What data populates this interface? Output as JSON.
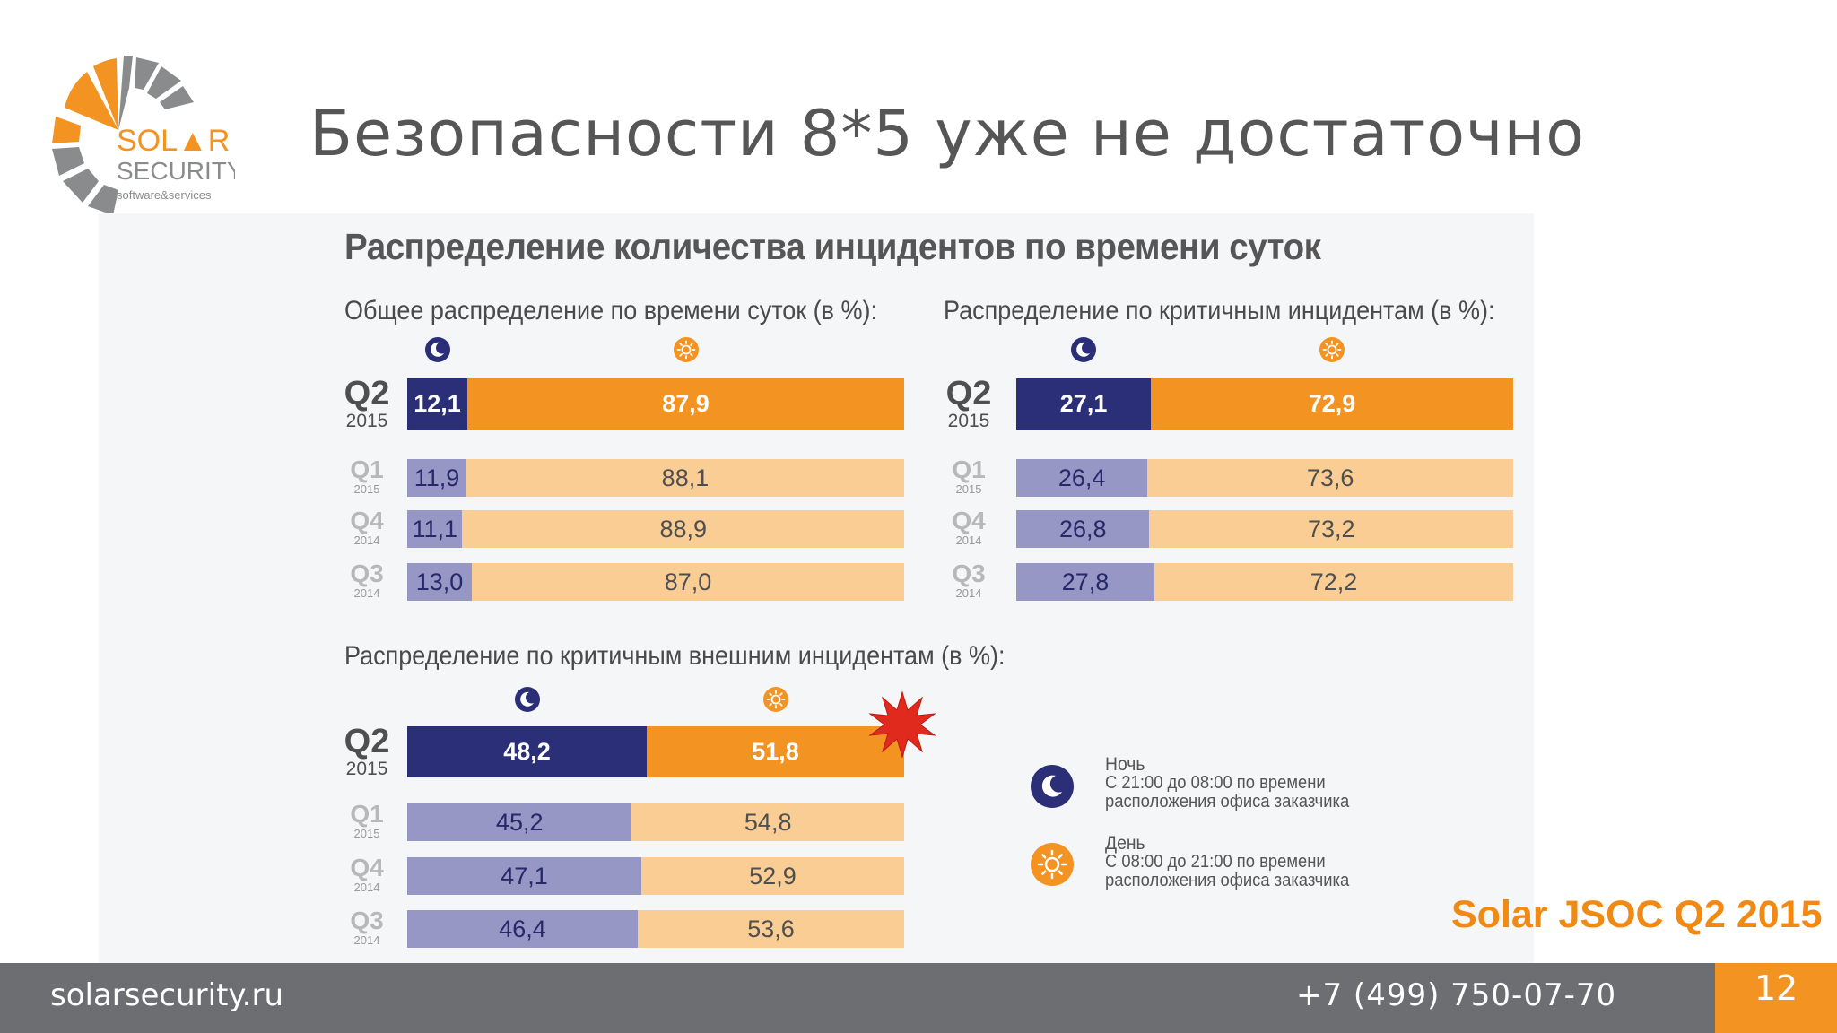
{
  "slide": {
    "title": "Безопасности 8*5 уже не достаточно",
    "page_number": "12"
  },
  "logo": {
    "line1_a": "SOL",
    "line1_b": "R",
    "line2": "SECURITY",
    "line3": "software&services",
    "colors": {
      "orange": "#f39322",
      "gray": "#8a8b8d"
    }
  },
  "panel_title": "Распределение количества инцидентов по времени суток",
  "legend": {
    "night_title": "Ночь",
    "night_line1": "С 21:00 до 08:00 по времени",
    "night_line2": "расположения офиса заказчика",
    "day_title": "День",
    "day_line1": "С 08:00 до 21:00 по времени",
    "day_line2": "расположения офиса заказчика",
    "night_icon": "moon-icon",
    "day_icon": "sun-icon"
  },
  "source_label": "Solar JSOC Q2 2015",
  "footer": {
    "site": "solarsecurity.ru",
    "phone": "+7 (499) 750-07-70"
  },
  "colors": {
    "night_main": "#2b2f78",
    "day_main": "#f39322",
    "night_sub": "#9697c4",
    "day_sub": "#f9cd93",
    "burst": "#e02a1d"
  },
  "chart_data": [
    {
      "type": "bar",
      "orientation": "horizontal-stacked",
      "title": "Общее распределение по времени суток (в %):",
      "categories": [
        {
          "q": "Q2",
          "year": "2015"
        },
        {
          "q": "Q1",
          "year": "2015"
        },
        {
          "q": "Q4",
          "year": "2014"
        },
        {
          "q": "Q3",
          "year": "2014"
        }
      ],
      "series": [
        {
          "icon": "moon-icon",
          "values": [
            12.1,
            11.9,
            11.1,
            13.0
          ],
          "labels": [
            "12,1",
            "11,9",
            "11,1",
            "13,0"
          ]
        },
        {
          "icon": "sun-icon",
          "values": [
            87.9,
            88.1,
            88.9,
            87.0
          ],
          "labels": [
            "87,9",
            "88,1",
            "88,9",
            "87,0"
          ]
        }
      ],
      "xlim": [
        0,
        100
      ]
    },
    {
      "type": "bar",
      "orientation": "horizontal-stacked",
      "title": "Распределение по критичным инцидентам (в %):",
      "categories": [
        {
          "q": "Q2",
          "year": "2015"
        },
        {
          "q": "Q1",
          "year": "2015"
        },
        {
          "q": "Q4",
          "year": "2014"
        },
        {
          "q": "Q3",
          "year": "2014"
        }
      ],
      "series": [
        {
          "icon": "moon-icon",
          "values": [
            27.1,
            26.4,
            26.8,
            27.8
          ],
          "labels": [
            "27,1",
            "26,4",
            "26,8",
            "27,8"
          ]
        },
        {
          "icon": "sun-icon",
          "values": [
            72.9,
            73.6,
            73.2,
            72.2
          ],
          "labels": [
            "72,9",
            "73,6",
            "73,2",
            "72,2"
          ]
        }
      ],
      "xlim": [
        0,
        100
      ]
    },
    {
      "type": "bar",
      "orientation": "horizontal-stacked",
      "title": "Распределение по критичным внешним инцидентам (в %):",
      "categories": [
        {
          "q": "Q2",
          "year": "2015"
        },
        {
          "q": "Q1",
          "year": "2015"
        },
        {
          "q": "Q4",
          "year": "2014"
        },
        {
          "q": "Q3",
          "year": "2014"
        }
      ],
      "series": [
        {
          "icon": "moon-icon",
          "values": [
            48.2,
            45.2,
            47.1,
            46.4
          ],
          "labels": [
            "48,2",
            "45,2",
            "47,1",
            "46,4"
          ]
        },
        {
          "icon": "sun-icon",
          "values": [
            51.8,
            54.8,
            52.9,
            53.6
          ],
          "labels": [
            "51,8",
            "54,8",
            "52,9",
            "53,6"
          ]
        }
      ],
      "xlim": [
        0,
        100
      ],
      "annotation": "burst-icon"
    }
  ]
}
